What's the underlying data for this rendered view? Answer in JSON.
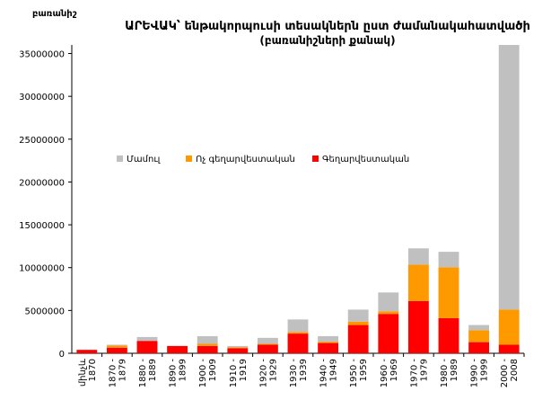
{
  "chart_data": {
    "type": "bar",
    "stacked": true,
    "title": "ԱՐԵՎԱԿ՝ ենթակորպուսի տեսակներն ըստ ժամանակահատվածի",
    "subtitle": "(բառանիշների քանակ)",
    "ylabel": "բառանիշ",
    "xlabel": "",
    "ylim": [
      0,
      36000000
    ],
    "yticks": [
      0,
      5000000,
      10000000,
      15000000,
      20000000,
      25000000,
      30000000,
      35000000
    ],
    "grid": false,
    "legend_position": "top-right",
    "categories": [
      "մինչև 1870",
      "1870 - 1879",
      "1880 - 1889",
      "1890 - 1899",
      "1900 - 1909",
      "1910 - 1919",
      "1920 - 1929",
      "1930 - 1939",
      "1940 - 1949",
      "1950 - 1959",
      "1960 - 1969",
      "1970 - 1979",
      "1980 - 1989",
      "1990 - 1999",
      "2000 - 2008"
    ],
    "category_lines": [
      [
        "մինչև",
        "1870"
      ],
      [
        "1870 -",
        "1879"
      ],
      [
        "1880 -",
        "1889"
      ],
      [
        "1890 -",
        "1899"
      ],
      [
        "1900 -",
        "1909"
      ],
      [
        "1910 -",
        "1919"
      ],
      [
        "1920 -",
        "1929"
      ],
      [
        "1930 -",
        "1939"
      ],
      [
        "1940 -",
        "1949"
      ],
      [
        "1950 -",
        "1959"
      ],
      [
        "1960 -",
        "1969"
      ],
      [
        "1970 -",
        "1979"
      ],
      [
        "1980 -",
        "1989"
      ],
      [
        "1990 -",
        "1999"
      ],
      [
        "2000 -",
        "2008"
      ]
    ],
    "series": [
      {
        "name": "Գեղարվեստական",
        "color": "#ff0000",
        "values": [
          400000,
          650000,
          1450000,
          850000,
          850000,
          600000,
          1000000,
          2300000,
          1200000,
          3300000,
          4600000,
          6100000,
          4100000,
          1300000,
          1000000
        ]
      },
      {
        "name": "Ոչ գեղարվեստական",
        "color": "#ff9900",
        "values": [
          0,
          250000,
          0,
          0,
          250000,
          100000,
          100000,
          200000,
          150000,
          400000,
          300000,
          4250000,
          5950000,
          1400000,
          4100000
        ]
      },
      {
        "name": "Մամուլ",
        "color": "#c0c0c0",
        "values": [
          0,
          100000,
          450000,
          0,
          900000,
          150000,
          700000,
          1450000,
          650000,
          1400000,
          2200000,
          1900000,
          1800000,
          600000,
          30900000
        ]
      }
    ],
    "legend_order": [
      "Մամուլ",
      "Ոչ գեղարվեստական",
      "Գեղարվեստական"
    ]
  }
}
